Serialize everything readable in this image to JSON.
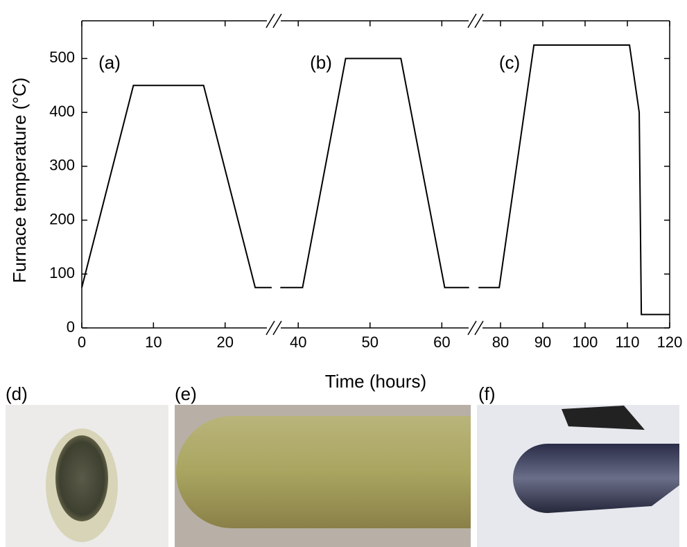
{
  "chart_data": {
    "type": "line",
    "y_label": "Furnace temperature (°C)",
    "x_label": "Time (hours)",
    "color": "#000000",
    "ylim": [
      0,
      570
    ],
    "yticks": [
      0,
      100,
      200,
      300,
      400,
      500
    ],
    "segments": [
      {
        "label": "(a)",
        "xlim": [
          0,
          26.8
        ],
        "xticks": [
          0,
          10,
          20
        ],
        "x": [
          0,
          7.2,
          17,
          24.2,
          26.5
        ],
        "values": [
          75,
          450,
          450,
          75,
          75
        ]
      },
      {
        "label": "(b)",
        "xlim": [
          36.6,
          64.7
        ],
        "xticks": [
          40,
          50,
          60
        ],
        "x": [
          37.5,
          40.6,
          46.6,
          54.3,
          60.4,
          63.8
        ],
        "values": [
          75,
          75,
          500,
          500,
          75,
          75
        ]
      },
      {
        "label": "(c)",
        "xlim": [
          74.1,
          120
        ],
        "xticks": [
          80,
          90,
          100,
          110,
          120
        ],
        "x": [
          74.8,
          79.7,
          87.9,
          110.5,
          112.8,
          113.3,
          120
        ],
        "values": [
          75,
          75,
          525,
          525,
          400,
          25,
          25
        ]
      }
    ]
  },
  "photos": {
    "labels": [
      "(d)",
      "(e)",
      "(f)"
    ]
  }
}
